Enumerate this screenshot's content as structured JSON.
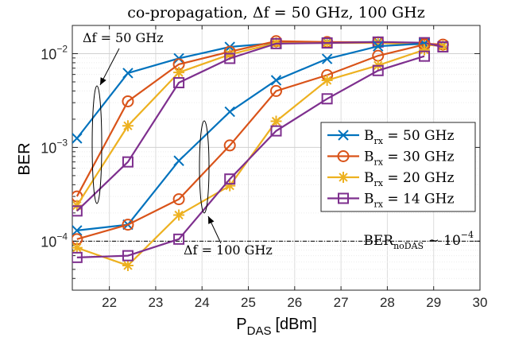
{
  "chart_data": {
    "type": "line",
    "title": "co-propagation, Δf = 50 GHz, 100 GHz",
    "xlabel": "P",
    "xlabel_sub": "DAS",
    "xlabel_unit": "[dBm]",
    "ylabel": "BER",
    "xlim": [
      21.2,
      30
    ],
    "ylim": [
      3e-05,
      0.02
    ],
    "yscale": "log",
    "grid": true,
    "x_ticks": [
      22,
      23,
      24,
      25,
      26,
      27,
      28,
      29,
      30
    ],
    "x_tick_labels": [
      "22",
      "23",
      "24",
      "25",
      "26",
      "27",
      "28",
      "29",
      "30"
    ],
    "y_ticks": [
      0.0001,
      0.001,
      0.01
    ],
    "legend": {
      "position": "right",
      "entries": [
        {
          "label": "B",
          "sub": "rx",
          "suffix": " = 50 GHz"
        },
        {
          "label": "B",
          "sub": "rx",
          "suffix": " = 30 GHz"
        },
        {
          "label": "B",
          "sub": "rx",
          "suffix": " = 20 GHz"
        },
        {
          "label": "B",
          "sub": "rx",
          "suffix": " = 14 GHz"
        }
      ]
    },
    "reference_line": {
      "y": 0.0001,
      "label": "BER",
      "label_sub": "noDAS",
      "label_suffix": " ∼ 10",
      "label_exp": "−4"
    },
    "annotations": [
      {
        "text": "Δf = 50 GHz",
        "target_x": 21.7,
        "target_y": 0.0025
      },
      {
        "text": "Δf = 100 GHz",
        "target_x": 24.05,
        "target_y": 9e-05
      }
    ],
    "series": [
      {
        "group": "Δf = 50 GHz",
        "bw": "50 GHz",
        "color": "#0072BD",
        "marker": "x",
        "x": [
          21.3,
          22.4,
          23.5,
          24.6,
          25.6,
          26.7,
          27.8,
          28.8,
          29.2
        ],
        "y": [
          0.00125,
          0.0062,
          0.0089,
          0.0118,
          0.013,
          0.0132,
          0.0133,
          0.0128,
          0.0122
        ]
      },
      {
        "group": "Δf = 50 GHz",
        "bw": "30 GHz",
        "color": "#D95319",
        "marker": "o",
        "x": [
          21.3,
          22.4,
          23.5,
          24.6,
          25.6,
          26.7,
          27.8,
          28.8,
          29.2
        ],
        "y": [
          0.0003,
          0.0031,
          0.0077,
          0.0105,
          0.0136,
          0.0133,
          0.0132,
          0.0128,
          0.0125
        ]
      },
      {
        "group": "Δf = 50 GHz",
        "bw": "20 GHz",
        "color": "#EDB120",
        "marker": "*",
        "x": [
          21.3,
          22.4,
          23.5,
          24.6,
          25.6,
          26.7,
          27.8,
          28.8,
          29.2
        ],
        "y": [
          0.00024,
          0.0017,
          0.0063,
          0.0098,
          0.013,
          0.013,
          0.013,
          0.0125,
          0.012
        ]
      },
      {
        "group": "Δf = 50 GHz",
        "bw": "14 GHz",
        "color": "#7E2F8E",
        "marker": "s",
        "x": [
          21.3,
          22.4,
          23.5,
          24.6,
          25.6,
          26.7,
          27.8,
          28.8,
          29.2
        ],
        "y": [
          0.00021,
          0.0007,
          0.0049,
          0.0089,
          0.0128,
          0.013,
          0.0133,
          0.0131,
          0.0118
        ]
      },
      {
        "group": "Δf = 100 GHz",
        "bw": "50 GHz",
        "color": "#0072BD",
        "marker": "x",
        "x": [
          21.3,
          22.4,
          23.5,
          24.6,
          25.6,
          26.7,
          27.8,
          28.8
        ],
        "y": [
          0.00013,
          0.00015,
          0.00072,
          0.0024,
          0.0052,
          0.0088,
          0.012,
          0.0128
        ]
      },
      {
        "group": "Δf = 100 GHz",
        "bw": "30 GHz",
        "color": "#D95319",
        "marker": "o",
        "x": [
          21.3,
          22.4,
          23.5,
          24.6,
          25.6,
          26.7,
          27.8,
          28.8
        ],
        "y": [
          0.000105,
          0.00015,
          0.00028,
          0.00105,
          0.004,
          0.0059,
          0.0095,
          0.0125
        ]
      },
      {
        "group": "Δf = 100 GHz",
        "bw": "20 GHz",
        "color": "#EDB120",
        "marker": "*",
        "x": [
          21.3,
          22.4,
          23.5,
          24.6,
          25.6,
          26.7,
          27.8,
          28.8
        ],
        "y": [
          8.5e-05,
          5.5e-05,
          0.00019,
          0.00039,
          0.0019,
          0.0052,
          0.0075,
          0.011
        ]
      },
      {
        "group": "Δf = 100 GHz",
        "bw": "14 GHz",
        "color": "#7E2F8E",
        "marker": "s",
        "x": [
          21.3,
          22.4,
          23.5,
          24.6,
          25.6,
          26.7,
          27.8,
          28.8
        ],
        "y": [
          6.7e-05,
          7e-05,
          0.000105,
          0.00046,
          0.0015,
          0.0033,
          0.0066,
          0.0094
        ]
      }
    ]
  }
}
